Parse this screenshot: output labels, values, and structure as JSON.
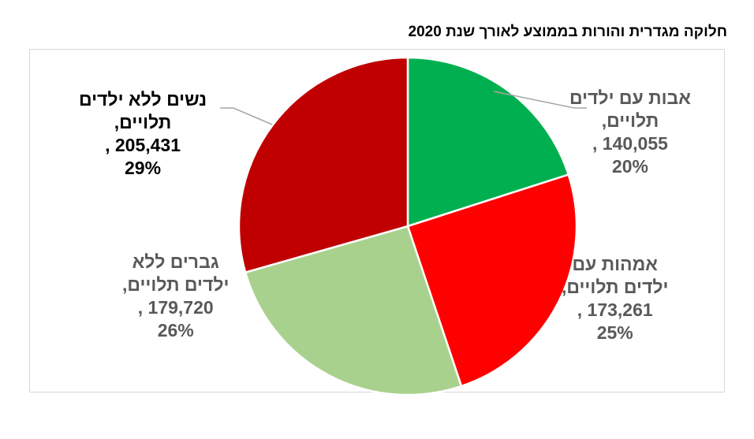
{
  "title": "חלוקה מגדרית והורות בממוצע לאורך שנת 2020",
  "chart_data": {
    "type": "pie",
    "title": "חלוקה מגדרית והורות בממוצע לאורך שנת 2020",
    "start_angle_deg": 0,
    "direction": "clockwise",
    "slices": [
      {
        "name_line1": "אבות עם ילדים",
        "name_line2": "תלויים,",
        "value": 140055,
        "value_label": "140,055 ,",
        "percent_label": "20%",
        "color": "#00b050",
        "label_color": "#595959"
      },
      {
        "name_line1": "אמהות עם",
        "name_line2": "ילדים תלויים,",
        "value": 173261,
        "value_label": "173,261 ,",
        "percent_label": "25%",
        "color": "#ff0000",
        "label_color": "#595959"
      },
      {
        "name_line1": "גברים ללא",
        "name_line2": "ילדים תלויים,",
        "value": 179720,
        "value_label": "179,720 ,",
        "percent_label": "26%",
        "color": "#a9d18e",
        "label_color": "#595959"
      },
      {
        "name_line1": "נשים ללא ילדים",
        "name_line2": "תלויים,",
        "value": 205431,
        "value_label": "205,431 ,",
        "percent_label": "29%",
        "color": "#c00000",
        "label_color": "#000000"
      }
    ]
  }
}
